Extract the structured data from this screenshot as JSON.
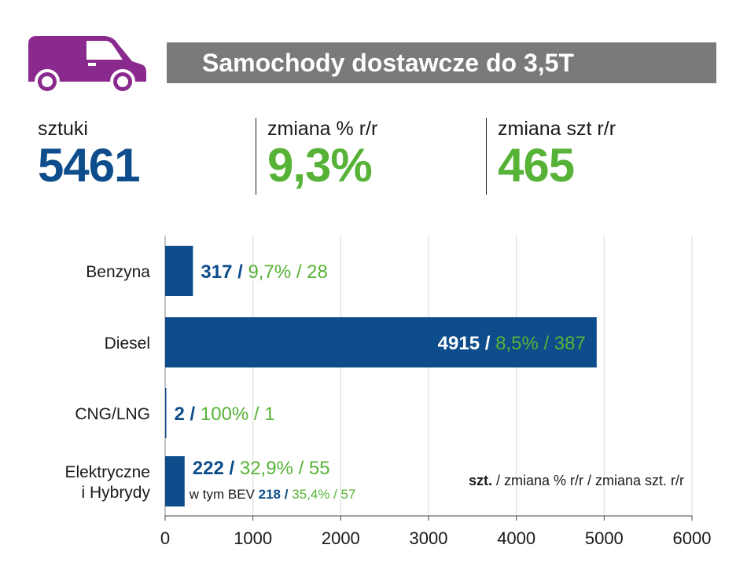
{
  "title": "Samochody dostawcze do 3,5T",
  "icon": "delivery-van-icon",
  "colors": {
    "van": "#8b2a8e",
    "title_bg": "#7a7a7a",
    "blue": "#0d4d8b",
    "green": "#57b337",
    "grid": "#d9d9d9"
  },
  "kpis": {
    "units": {
      "label": "sztuki",
      "value": "5461"
    },
    "pct_change": {
      "label": "zmiana % r/r",
      "value": "9,3%"
    },
    "unit_change": {
      "label": "zmiana szt r/r",
      "value": "465"
    }
  },
  "chart_data": {
    "type": "bar",
    "orientation": "horizontal",
    "categories": [
      {
        "lines": [
          "Benzyna"
        ]
      },
      {
        "lines": [
          "Diesel"
        ]
      },
      {
        "lines": [
          "CNG/LNG"
        ]
      },
      {
        "lines": [
          "Elektryczne",
          "i Hybrydy"
        ]
      }
    ],
    "values": [
      317,
      4915,
      2,
      222
    ],
    "labels": [
      {
        "units": "317",
        "sep": " / ",
        "rest": "9,7% / 28"
      },
      {
        "units": "4915",
        "sep": " / ",
        "rest": "8,5% / 387"
      },
      {
        "units": "2",
        "sep": " / ",
        "rest": "100% / 1"
      },
      {
        "units": "222",
        "sep": " / ",
        "rest": "32,9% / 55"
      }
    ],
    "sublabel": {
      "prefix": "w tym BEV ",
      "units": "218",
      "sep": " / ",
      "rest": "35,4% / 57"
    },
    "xlim": [
      0,
      6000
    ],
    "xticks": [
      0,
      1000,
      2000,
      3000,
      4000,
      5000,
      6000
    ],
    "xtick_labels": [
      "0",
      "1000",
      "2000",
      "3000",
      "4000",
      "5000",
      "6000"
    ],
    "legend": {
      "bold": "szt.",
      "rest": " / zmiana % r/r / zmiana szt. r/r"
    },
    "grid": true
  }
}
